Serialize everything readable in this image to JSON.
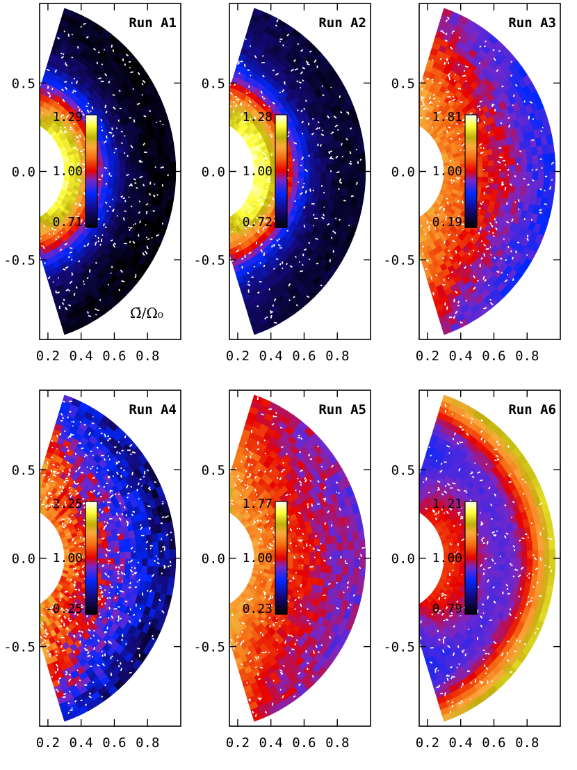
{
  "chart_data": [
    {
      "type": "heatmap",
      "title": "Run A1",
      "colorbar": {
        "max_label": "1.29",
        "mid_label": "1.00",
        "min_label": "0.71",
        "max": 1.29,
        "mid": 1.0,
        "min": 0.71
      },
      "quantity_label": "Ω̄/Ω₀",
      "xlim": [
        0.15,
        1.0
      ],
      "ylim": [
        -0.95,
        0.95
      ],
      "xticks": [
        "0.2",
        "0.4",
        "0.6",
        "0.8"
      ],
      "yticks": [
        "0.5",
        "0.0",
        "-0.5"
      ],
      "radial_profile": [
        1.25,
        1.2,
        1.05,
        0.9,
        0.8,
        0.75,
        0.73,
        0.72,
        0.72
      ],
      "polar_value": 0.85,
      "polar_strength": 0.4,
      "noise": 0.03
    },
    {
      "type": "heatmap",
      "title": "Run A2",
      "colorbar": {
        "max_label": "1.28",
        "mid_label": "1.00",
        "min_label": "0.72",
        "max": 1.28,
        "mid": 1.0,
        "min": 0.72
      },
      "xlim": [
        0.15,
        1.0
      ],
      "ylim": [
        -0.95,
        0.95
      ],
      "xticks": [
        "0.2",
        "0.4",
        "0.6",
        "0.8"
      ],
      "yticks": [
        "0.5",
        "0.0",
        "-0.5"
      ],
      "radial_profile": [
        1.25,
        1.22,
        1.1,
        0.95,
        0.83,
        0.78,
        0.76,
        0.75,
        0.75
      ],
      "polar_value": 0.95,
      "polar_strength": 0.4,
      "noise": 0.03
    },
    {
      "type": "heatmap",
      "title": "Run A3",
      "colorbar": {
        "max_label": "1.81",
        "mid_label": "1.00",
        "min_label": "0.19",
        "max": 1.81,
        "mid": 1.0,
        "min": 0.19
      },
      "xlim": [
        0.15,
        1.0
      ],
      "ylim": [
        -0.95,
        0.95
      ],
      "xticks": [
        "0.2",
        "0.4",
        "0.6",
        "0.8"
      ],
      "yticks": [
        "0.5",
        "0.0",
        "-0.5"
      ],
      "radial_profile": [
        1.3,
        1.22,
        1.15,
        1.05,
        0.98,
        0.9,
        0.82,
        0.76,
        0.72
      ],
      "polar_value": 1.6,
      "polar_strength": 0.5,
      "noise": 0.05
    },
    {
      "type": "heatmap",
      "title": "Run A4",
      "colorbar": {
        "max_label": "2.25",
        "mid_label": "1.00",
        "min_label": "-0.25",
        "max": 2.25,
        "mid": 1.0,
        "min": -0.25
      },
      "xlim": [
        0.15,
        1.0
      ],
      "ylim": [
        -0.95,
        0.95
      ],
      "xticks": [
        "0.2",
        "0.4",
        "0.6",
        "0.8"
      ],
      "yticks": [
        "0.5",
        "0.0",
        "-0.5"
      ],
      "radial_profile": [
        1.35,
        1.2,
        1.05,
        0.9,
        0.75,
        0.55,
        0.35,
        0.15,
        0.05
      ],
      "polar_value": 2.0,
      "polar_strength": 0.6,
      "noise": 0.1
    },
    {
      "type": "heatmap",
      "title": "Run A5",
      "colorbar": {
        "max_label": "1.77",
        "mid_label": "1.00",
        "min_label": "0.23",
        "max": 1.77,
        "mid": 1.0,
        "min": 0.23
      },
      "xlim": [
        0.15,
        1.0
      ],
      "ylim": [
        -0.95,
        0.95
      ],
      "xticks": [
        "0.2",
        "0.4",
        "0.6",
        "0.8"
      ],
      "yticks": [
        "0.5",
        "0.0",
        "-0.5"
      ],
      "radial_profile": [
        1.3,
        1.22,
        1.15,
        1.05,
        1.0,
        0.95,
        0.9,
        0.88,
        0.86
      ],
      "polar_value": 1.6,
      "polar_strength": 0.55,
      "noise": 0.05
    },
    {
      "type": "heatmap",
      "title": "Run A6",
      "colorbar": {
        "max_label": "1.21",
        "mid_label": "1.00",
        "min_label": "0.79",
        "max": 1.21,
        "mid": 1.0,
        "min": 0.79
      },
      "xlim": [
        0.15,
        1.0
      ],
      "ylim": [
        -0.95,
        0.95
      ],
      "xticks": [
        "0.2",
        "0.4",
        "0.6",
        "0.8"
      ],
      "yticks": [
        "0.5",
        "0.0",
        "-0.5"
      ],
      "radial_profile": [
        1.03,
        1.01,
        0.99,
        0.97,
        0.95,
        0.96,
        1.0,
        1.08,
        1.16
      ],
      "polar_value": 0.88,
      "polar_strength": 0.5,
      "noise": 0.02
    }
  ]
}
